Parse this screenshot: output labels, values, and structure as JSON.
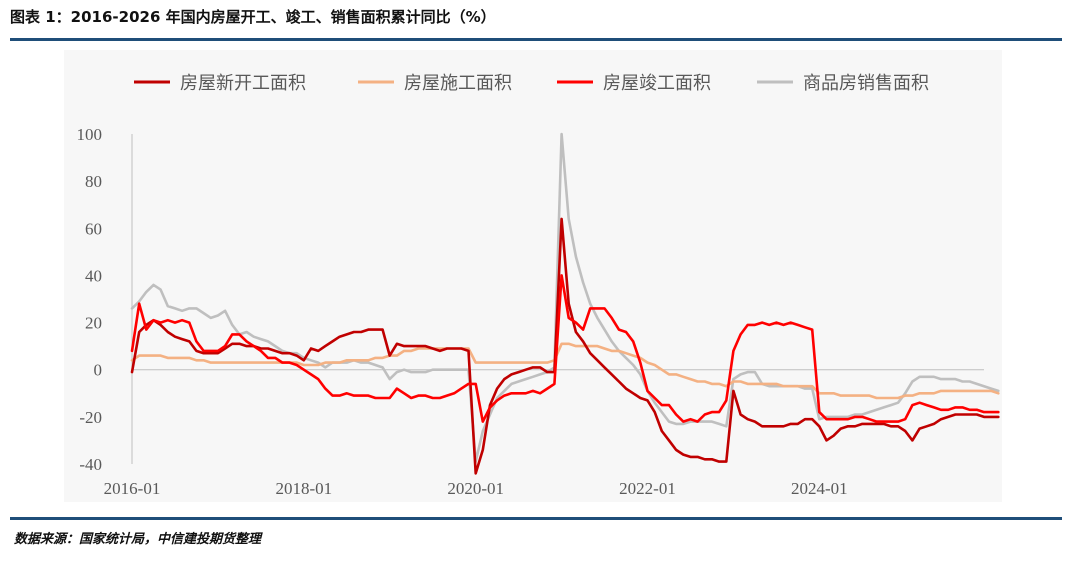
{
  "header": {
    "title": "图表 1：2016-2026 年国内房屋开工、竣工、销售面积累计同比（%）"
  },
  "footer": {
    "source": "数据来源：国家统计局，中信建投期货整理"
  },
  "chart_data": {
    "type": "line",
    "title": "图表 1：2016-2026 年国内房屋开工、竣工、销售面积累计同比（%）",
    "xlabel": "",
    "ylabel": "",
    "ylim": [
      -40,
      100
    ],
    "yticks": [
      100,
      80,
      60,
      40,
      20,
      0,
      -20,
      -40
    ],
    "xticks": [
      "2016-01",
      "2018-01",
      "2020-01",
      "2022-01",
      "2024-01"
    ],
    "x_start": "2016-01",
    "x_end": "2025-12",
    "grid": false,
    "legend_position": "top",
    "zero_line": true,
    "series": [
      {
        "name": "房屋新开工面积",
        "color": "#c00000",
        "values": [
          -1,
          16,
          19,
          21,
          19,
          16,
          14,
          13,
          12,
          8,
          7,
          7,
          7,
          9,
          11,
          11,
          10,
          10,
          9,
          9,
          8,
          7,
          7,
          6,
          4,
          9,
          8,
          10,
          12,
          14,
          15,
          16,
          16,
          17,
          17,
          17,
          6,
          11,
          10,
          10,
          10,
          10,
          9,
          8,
          9,
          9,
          9,
          8,
          -44,
          -34,
          -15,
          -8,
          -4,
          -2,
          -1,
          0,
          1,
          1,
          -1,
          -1,
          64,
          28,
          16,
          12,
          7,
          4,
          1,
          -2,
          -5,
          -8,
          -10,
          -12,
          -13,
          -18,
          -26,
          -30,
          -34,
          -36,
          -37,
          -37,
          -38,
          -38,
          -39,
          -39,
          -9,
          -19,
          -21,
          -22,
          -24,
          -24,
          -24,
          -24,
          -23,
          -23,
          -21,
          -21,
          -24,
          -30,
          -28,
          -25,
          -24,
          -24,
          -23,
          -23,
          -23,
          -23,
          -24,
          -24,
          -26,
          -30,
          -25,
          -24,
          -23,
          -21,
          -20,
          -19,
          -19,
          -19,
          -19,
          -20,
          -20,
          -20
        ]
      },
      {
        "name": "房屋施工面积",
        "color": "#f4b183",
        "values": [
          4,
          6,
          6,
          6,
          6,
          5,
          5,
          5,
          5,
          4,
          4,
          3,
          3,
          3,
          3,
          3,
          3,
          3,
          3,
          3,
          3,
          3,
          3,
          3,
          2,
          2,
          2,
          3,
          3,
          3,
          4,
          4,
          4,
          4,
          5,
          5,
          6,
          6,
          8,
          8,
          9,
          9,
          9,
          9,
          9,
          9,
          9,
          9,
          3,
          3,
          3,
          3,
          3,
          3,
          3,
          3,
          3,
          3,
          3,
          4,
          11,
          11,
          10,
          10,
          10,
          10,
          9,
          8,
          8,
          7,
          6,
          5,
          3,
          2,
          0,
          -2,
          -2,
          -3,
          -4,
          -5,
          -5,
          -6,
          -6,
          -7,
          -5,
          -5,
          -6,
          -6,
          -6,
          -6,
          -6,
          -7,
          -7,
          -7,
          -7,
          -7,
          -10,
          -10,
          -10,
          -11,
          -11,
          -11,
          -11,
          -11,
          -12,
          -12,
          -12,
          -12,
          -11,
          -11,
          -10,
          -10,
          -10,
          -9,
          -9,
          -9,
          -9,
          -9,
          -9,
          -9,
          -9,
          -10
        ]
      },
      {
        "name": "房屋竣工面积",
        "color": "#ff0000",
        "values": [
          8,
          28,
          17,
          21,
          20,
          21,
          20,
          21,
          20,
          12,
          8,
          8,
          8,
          10,
          15,
          15,
          12,
          10,
          8,
          5,
          5,
          3,
          3,
          2,
          0,
          -2,
          -4,
          -8,
          -11,
          -11,
          -10,
          -11,
          -11,
          -11,
          -12,
          -12,
          -12,
          -8,
          -10,
          -12,
          -11,
          -11,
          -12,
          -12,
          -11,
          -10,
          -8,
          -6,
          -6,
          -22,
          -16,
          -13,
          -11,
          -10,
          -10,
          -10,
          -9,
          -10,
          -8,
          -6,
          40,
          22,
          20,
          17,
          26,
          26,
          26,
          22,
          17,
          16,
          12,
          3,
          -9,
          -12,
          -15,
          -15,
          -19,
          -22,
          -21,
          -22,
          -19,
          -18,
          -18,
          -13,
          8,
          15,
          19,
          19,
          20,
          19,
          20,
          19,
          20,
          19,
          18,
          17,
          -18,
          -21,
          -21,
          -21,
          -21,
          -20,
          -20,
          -21,
          -22,
          -22,
          -22,
          -22,
          -21,
          -15,
          -14,
          -15,
          -16,
          -17,
          -17,
          -16,
          -16,
          -17,
          -17,
          -18,
          -18,
          -18
        ]
      },
      {
        "name": "商品房销售面积",
        "color": "#bfbfbf",
        "values": [
          26,
          29,
          33,
          36,
          34,
          27,
          26,
          25,
          26,
          26,
          24,
          22,
          23,
          25,
          19,
          15,
          16,
          14,
          13,
          12,
          10,
          8,
          7,
          7,
          5,
          4,
          3,
          1,
          3,
          3,
          3,
          4,
          3,
          3,
          2,
          1,
          -4,
          -1,
          0,
          -1,
          -1,
          -1,
          0,
          0,
          0,
          0,
          0,
          0,
          -39,
          -26,
          -19,
          -12,
          -9,
          -6,
          -5,
          -4,
          -3,
          -2,
          -1,
          1,
          100,
          64,
          48,
          37,
          28,
          22,
          17,
          12,
          8,
          5,
          2,
          -2,
          -9,
          -14,
          -18,
          -22,
          -23,
          -23,
          -22,
          -22,
          -22,
          -22,
          -23,
          -24,
          -4,
          -2,
          -1,
          -1,
          -6,
          -7,
          -7,
          -7,
          -7,
          -7,
          -8,
          -8,
          -21,
          -20,
          -20,
          -20,
          -20,
          -19,
          -19,
          -18,
          -17,
          -16,
          -15,
          -14,
          -10,
          -5,
          -3,
          -3,
          -3,
          -4,
          -4,
          -4,
          -5,
          -5,
          -6,
          -7,
          -8,
          -9
        ]
      }
    ]
  }
}
